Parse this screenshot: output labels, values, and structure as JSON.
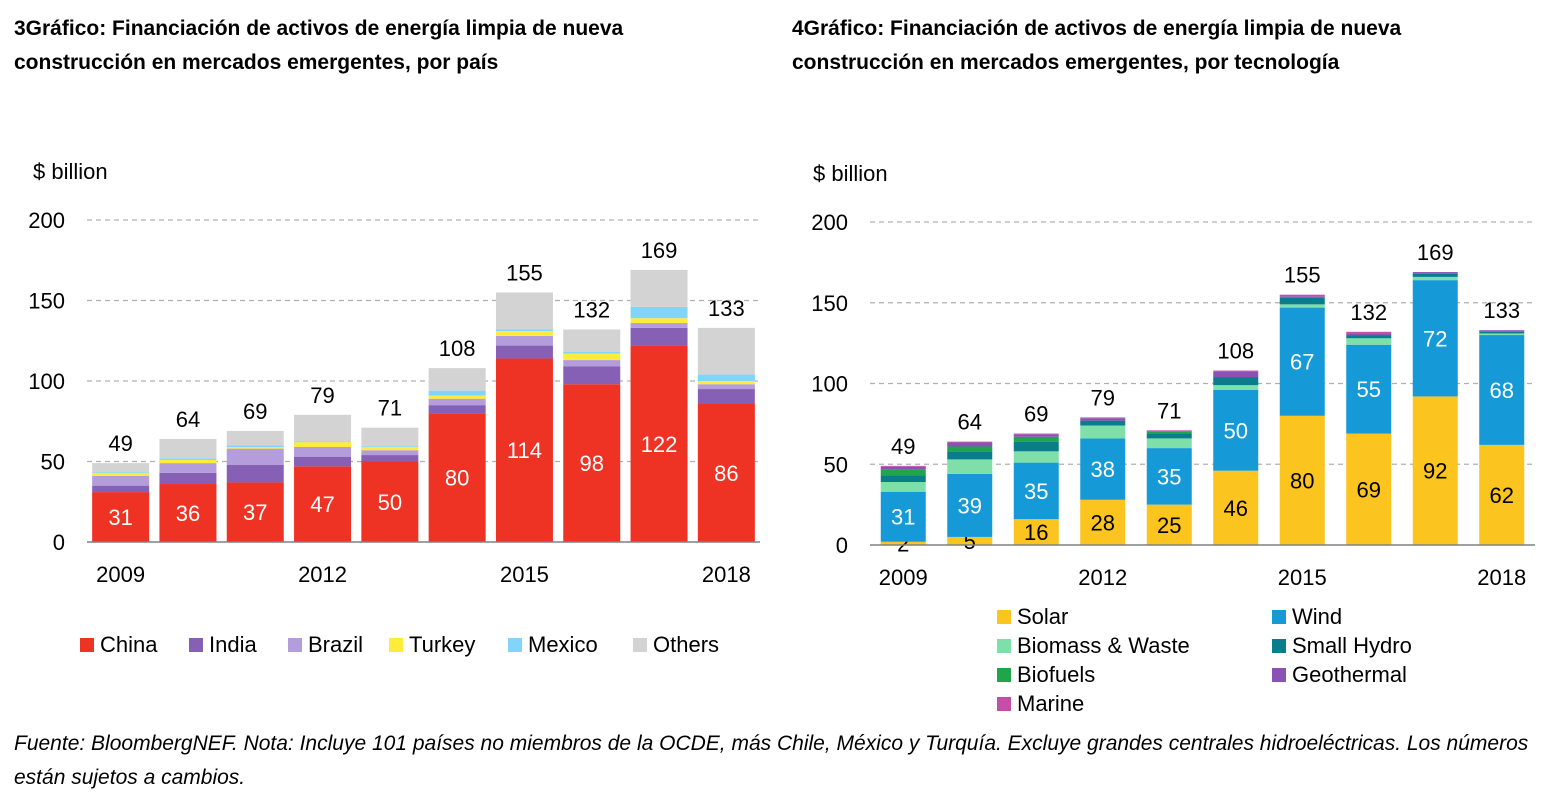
{
  "chart_data": [
    {
      "type": "bar",
      "stacked": true,
      "title": "3Gráfico: Financiación de activos de energía limpia de nueva construcción en mercados emergentes, por país",
      "ylabel": "$ billion",
      "ylim": [
        0,
        200
      ],
      "yticks": [
        0,
        50,
        100,
        150,
        200
      ],
      "categories": [
        "2009",
        "2010",
        "2011",
        "2012",
        "2013",
        "2014",
        "2015",
        "2016",
        "2017",
        "2018"
      ],
      "xtick_labels": [
        "2009",
        "",
        "",
        "2012",
        "",
        "",
        "2015",
        "",
        "",
        "2018"
      ],
      "grid": true,
      "legend_position": "bottom",
      "totals": [
        49,
        64,
        69,
        79,
        71,
        108,
        155,
        132,
        169,
        133
      ],
      "series": [
        {
          "name": "China",
          "color": "#ee3224",
          "values": [
            31,
            36,
            37,
            47,
            50,
            80,
            114,
            98,
            122,
            86
          ],
          "labeled": true,
          "label_color": "#ffffff"
        },
        {
          "name": "India",
          "color": "#8660b5",
          "values": [
            4,
            7,
            11,
            6,
            4,
            5,
            8,
            11,
            11,
            9
          ]
        },
        {
          "name": "Brazil",
          "color": "#b39ddb",
          "values": [
            6,
            6,
            10,
            6,
            3,
            4,
            6,
            4,
            3,
            3
          ]
        },
        {
          "name": "Turkey",
          "color": "#ffeb3b",
          "values": [
            2,
            2,
            1,
            3,
            2,
            2,
            3,
            4,
            3,
            2
          ]
        },
        {
          "name": "Mexico",
          "color": "#81d4fa",
          "values": [
            0.5,
            1,
            1,
            0.5,
            0.5,
            3,
            1,
            1,
            7,
            4
          ]
        },
        {
          "name": "Others",
          "color": "#d3d3d3",
          "values": [
            5.5,
            12,
            9,
            16.5,
            11.5,
            14,
            23,
            14,
            23,
            29
          ]
        }
      ]
    },
    {
      "type": "bar",
      "stacked": true,
      "title": "4Gráfico: Financiación de activos de energía limpia de nueva construcción en mercados emergentes, por tecnología",
      "ylabel": "$ billion",
      "ylim": [
        0,
        200
      ],
      "yticks": [
        0,
        50,
        100,
        150,
        200
      ],
      "categories": [
        "2009",
        "2010",
        "2011",
        "2012",
        "2013",
        "2014",
        "2015",
        "2016",
        "2017",
        "2018"
      ],
      "xtick_labels": [
        "2009",
        "",
        "",
        "2012",
        "",
        "",
        "2015",
        "",
        "",
        "2018"
      ],
      "grid": true,
      "legend_position": "bottom",
      "totals": [
        49,
        64,
        69,
        79,
        71,
        108,
        155,
        132,
        169,
        133
      ],
      "series": [
        {
          "name": "Solar",
          "color": "#fbc41e",
          "values": [
            2,
            5,
            16,
            28,
            25,
            46,
            80,
            69,
            92,
            62
          ],
          "labeled": true,
          "label_color": "#000000"
        },
        {
          "name": "Wind",
          "color": "#159ad7",
          "values": [
            31,
            39,
            35,
            38,
            35,
            50,
            67,
            55,
            72,
            68
          ],
          "labeled": true,
          "label_color": "#ffffff"
        },
        {
          "name": "Biomass & Waste",
          "color": "#7fdfa8",
          "values": [
            6,
            9,
            7,
            8,
            6,
            3,
            2,
            4,
            2,
            1
          ]
        },
        {
          "name": "Small Hydro",
          "color": "#0a7d8c",
          "values": [
            4,
            5,
            6,
            3,
            3,
            5,
            4,
            2,
            2,
            1
          ]
        },
        {
          "name": "Biofuels",
          "color": "#1fa64a",
          "values": [
            4,
            3,
            3,
            0,
            1,
            0,
            0,
            0,
            0,
            0
          ]
        },
        {
          "name": "Geothermal",
          "color": "#8a52b5",
          "values": [
            1.5,
            2.5,
            1.5,
            1.5,
            0.5,
            3.5,
            1,
            1,
            1,
            1
          ]
        },
        {
          "name": "Marine",
          "color": "#c54fa8",
          "values": [
            0.5,
            0.5,
            0.5,
            0.5,
            0.5,
            0.5,
            1,
            1,
            0,
            0
          ]
        }
      ]
    }
  ],
  "footnote": "Fuente: BloombergNEF. Nota: Incluye 101 países no miembros de la OCDE, más Chile, México y Turquía. Excluye grandes centrales hidroeléctricas. Los números están sujetos a cambios."
}
